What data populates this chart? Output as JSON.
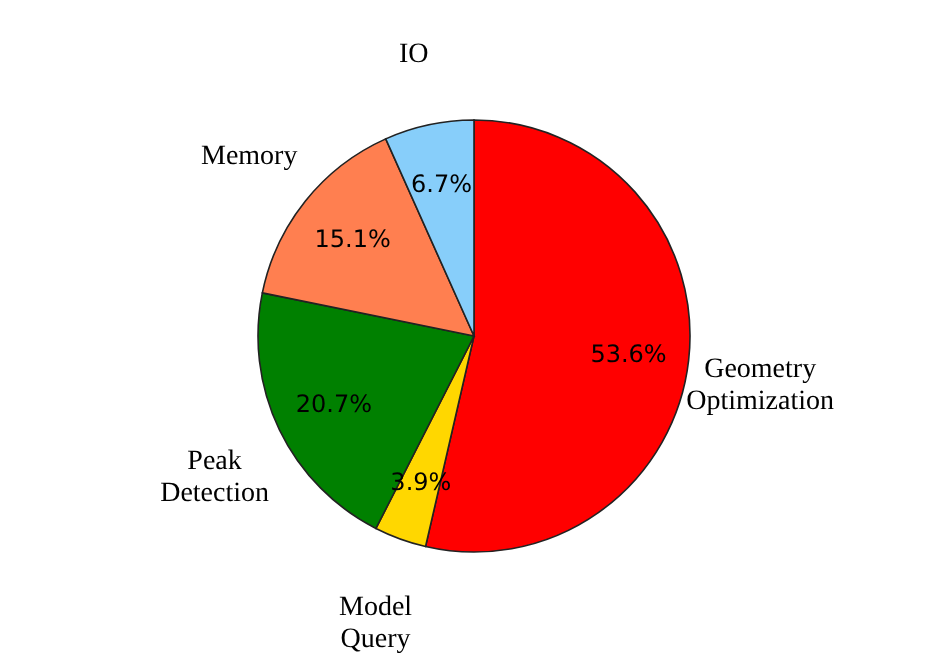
{
  "chart_data": {
    "type": "pie",
    "categories": [
      "Geometry Optimization",
      "Model Query",
      "Peak Detection",
      "Memory",
      "IO"
    ],
    "values": [
      53.6,
      3.9,
      20.7,
      15.1,
      6.7
    ],
    "colors": [
      "#ff0000",
      "#ffd700",
      "#008000",
      "#ff7f50",
      "#87cefa"
    ],
    "value_labels": [
      "53.6%",
      "3.9%",
      "20.7%",
      "15.1%",
      "6.7%"
    ],
    "legend": false
  }
}
